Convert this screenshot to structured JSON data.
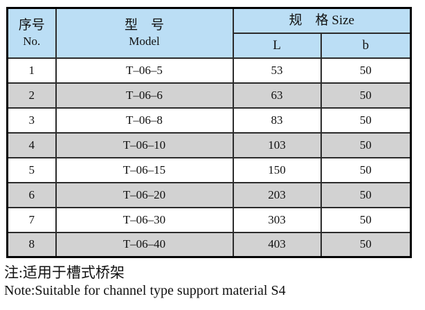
{
  "table": {
    "header": {
      "no_zh": "序号",
      "no_en": "No.",
      "model_zh": "型　号",
      "model_en": "Model",
      "size": "规　格 Size",
      "l": "L",
      "b": "b"
    },
    "rows": [
      {
        "no": "1",
        "model": "T–06–5",
        "l": "53",
        "b": "50"
      },
      {
        "no": "2",
        "model": "T–06–6",
        "l": "63",
        "b": "50"
      },
      {
        "no": "3",
        "model": "T–06–8",
        "l": "83",
        "b": "50"
      },
      {
        "no": "4",
        "model": "T–06–10",
        "l": "103",
        "b": "50"
      },
      {
        "no": "5",
        "model": "T–06–15",
        "l": "150",
        "b": "50"
      },
      {
        "no": "6",
        "model": "T–06–20",
        "l": "203",
        "b": "50"
      },
      {
        "no": "7",
        "model": "T–06–30",
        "l": "303",
        "b": "50"
      },
      {
        "no": "8",
        "model": "T–06–40",
        "l": "403",
        "b": "50"
      }
    ]
  },
  "notes": {
    "zh": "注:适用于槽式桥架",
    "en": "Note:Suitable for channel type support material S4"
  },
  "colors": {
    "header_bg": "#bbdef5",
    "row_alt_bg": "#d2d2d2",
    "border": "#000000"
  }
}
